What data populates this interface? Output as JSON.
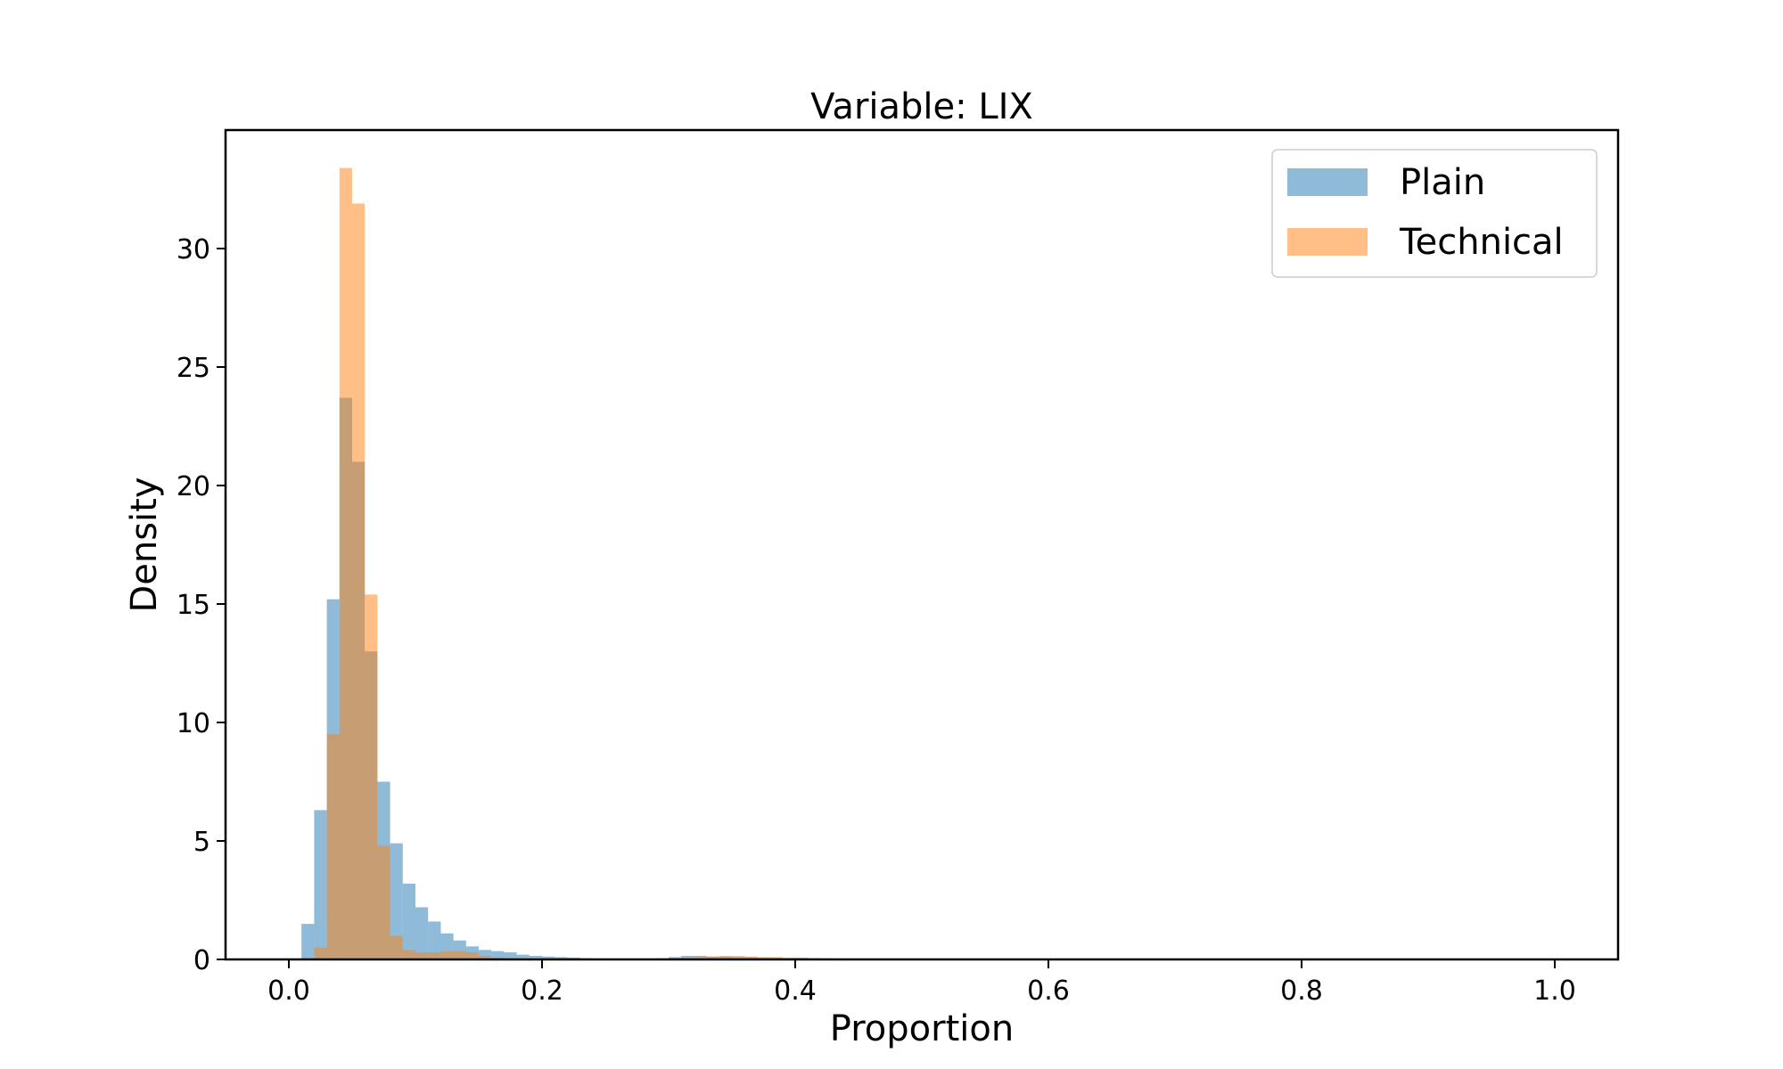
{
  "chart_data": {
    "type": "bar",
    "title": "Variable: LIX",
    "xlabel": "Proportion",
    "ylabel": "Density",
    "xlim": [
      -0.05,
      1.05
    ],
    "ylim": [
      0,
      35
    ],
    "xticks": [
      0.0,
      0.2,
      0.4,
      0.6,
      0.8,
      1.0
    ],
    "xtick_labels": [
      "0.0",
      "0.2",
      "0.4",
      "0.6",
      "0.8",
      "1.0"
    ],
    "yticks": [
      0,
      5,
      10,
      15,
      20,
      25,
      30
    ],
    "ytick_labels": [
      "0",
      "5",
      "10",
      "15",
      "20",
      "25",
      "30"
    ],
    "grid": false,
    "legend_position": "top-right",
    "histogram_alpha": 0.5,
    "series": [
      {
        "name": "Plain",
        "color": "#1f77b4",
        "bins": [
          [
            0.01,
            0.02,
            1.5
          ],
          [
            0.02,
            0.03,
            6.3
          ],
          [
            0.03,
            0.04,
            15.2
          ],
          [
            0.04,
            0.05,
            23.7
          ],
          [
            0.05,
            0.06,
            21.0
          ],
          [
            0.06,
            0.07,
            13.0
          ],
          [
            0.07,
            0.08,
            7.5
          ],
          [
            0.08,
            0.09,
            4.9
          ],
          [
            0.09,
            0.1,
            3.2
          ],
          [
            0.1,
            0.11,
            2.2
          ],
          [
            0.11,
            0.12,
            1.6
          ],
          [
            0.12,
            0.13,
            1.1
          ],
          [
            0.13,
            0.14,
            0.8
          ],
          [
            0.14,
            0.15,
            0.55
          ],
          [
            0.15,
            0.16,
            0.4
          ],
          [
            0.16,
            0.17,
            0.35
          ],
          [
            0.17,
            0.18,
            0.3
          ],
          [
            0.18,
            0.19,
            0.2
          ],
          [
            0.19,
            0.2,
            0.15
          ],
          [
            0.2,
            0.21,
            0.12
          ],
          [
            0.21,
            0.22,
            0.1
          ],
          [
            0.22,
            0.23,
            0.08
          ],
          [
            0.23,
            0.24,
            0.05
          ],
          [
            0.24,
            0.25,
            0.04
          ],
          [
            0.25,
            0.26,
            0.03
          ],
          [
            0.26,
            0.27,
            0.03
          ],
          [
            0.27,
            0.28,
            0.03
          ],
          [
            0.28,
            0.29,
            0.03
          ],
          [
            0.29,
            0.3,
            0.05
          ],
          [
            0.3,
            0.31,
            0.1
          ],
          [
            0.31,
            0.32,
            0.15
          ],
          [
            0.32,
            0.33,
            0.15
          ],
          [
            0.33,
            0.34,
            0.12
          ],
          [
            0.34,
            0.35,
            0.12
          ],
          [
            0.35,
            0.36,
            0.1
          ],
          [
            0.36,
            0.37,
            0.1
          ],
          [
            0.37,
            0.38,
            0.08
          ],
          [
            0.38,
            0.39,
            0.07
          ],
          [
            0.39,
            0.4,
            0.05
          ],
          [
            0.4,
            0.41,
            0.05
          ],
          [
            0.41,
            0.42,
            0.04
          ],
          [
            0.42,
            0.43,
            0.03
          ],
          [
            0.43,
            0.44,
            0.03
          ],
          [
            0.44,
            0.45,
            0.02
          ]
        ]
      },
      {
        "name": "Technical",
        "color": "#ff7f0e",
        "bins": [
          [
            0.02,
            0.03,
            0.5
          ],
          [
            0.03,
            0.04,
            9.5
          ],
          [
            0.04,
            0.05,
            33.4
          ],
          [
            0.05,
            0.06,
            31.9
          ],
          [
            0.06,
            0.07,
            15.4
          ],
          [
            0.07,
            0.08,
            4.8
          ],
          [
            0.08,
            0.09,
            1.0
          ],
          [
            0.09,
            0.1,
            0.4
          ],
          [
            0.1,
            0.11,
            0.3
          ],
          [
            0.11,
            0.12,
            0.3
          ],
          [
            0.12,
            0.13,
            0.35
          ],
          [
            0.13,
            0.14,
            0.35
          ],
          [
            0.14,
            0.15,
            0.3
          ],
          [
            0.15,
            0.16,
            0.15
          ],
          [
            0.16,
            0.17,
            0.08
          ],
          [
            0.17,
            0.18,
            0.05
          ],
          [
            0.18,
            0.19,
            0.04
          ],
          [
            0.19,
            0.2,
            0.03
          ],
          [
            0.3,
            0.31,
            0.05
          ],
          [
            0.31,
            0.32,
            0.08
          ],
          [
            0.32,
            0.33,
            0.1
          ],
          [
            0.33,
            0.34,
            0.12
          ],
          [
            0.34,
            0.35,
            0.15
          ],
          [
            0.35,
            0.36,
            0.15
          ],
          [
            0.36,
            0.37,
            0.12
          ],
          [
            0.37,
            0.38,
            0.1
          ],
          [
            0.38,
            0.39,
            0.1
          ],
          [
            0.39,
            0.4,
            0.08
          ],
          [
            0.4,
            0.41,
            0.08
          ],
          [
            0.41,
            0.42,
            0.06
          ],
          [
            0.42,
            0.43,
            0.05
          ],
          [
            0.43,
            0.44,
            0.04
          ],
          [
            0.44,
            0.45,
            0.03
          ],
          [
            0.45,
            0.46,
            0.02
          ]
        ]
      }
    ]
  }
}
